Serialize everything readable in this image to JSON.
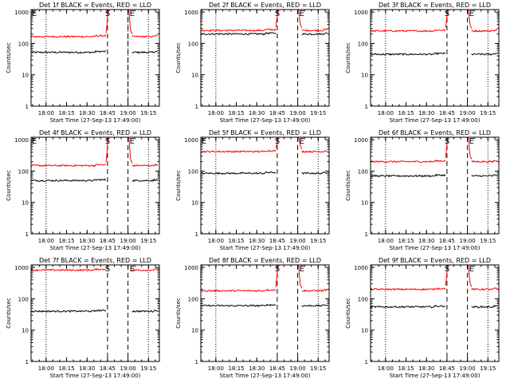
{
  "x_tick_labels": [
    "18:00",
    "18:15",
    "18:30",
    "18:45",
    "19:00",
    "19:15"
  ],
  "y_tick_labels": [
    "1",
    "10",
    "100",
    "1000"
  ],
  "ylabel": "Counts/sec",
  "start_marker": "S",
  "end_marker": "E",
  "colors": {
    "events": "#000000",
    "lld": "#ff0000",
    "background": "#ffffff"
  },
  "chart_data": [
    {
      "type": "line",
      "title": "Det 1f BLACK = Events, RED = LLD",
      "xlabel": "Start Time (27-Sep-13 17:49:00)",
      "ylabel": "Counts/sec",
      "y_scale": "log",
      "ylim": [
        1,
        1200
      ],
      "x_ticks": [
        "18:00",
        "18:15",
        "18:30",
        "18:45",
        "19:00",
        "19:15"
      ],
      "dotted_lines": [
        "18:00",
        "19:00",
        "19:15"
      ],
      "dashed_lines": [
        "18:45",
        "19:00"
      ],
      "series": [
        {
          "name": "Events",
          "color": "#000000",
          "segments": [
            {
              "from": "17:49",
              "to": "18:44",
              "level": 52
            },
            {
              "from": "19:03",
              "to": "19:22",
              "level": 52
            }
          ]
        },
        {
          "name": "LLD",
          "color": "#ff0000",
          "segments": [
            {
              "from": "17:49",
              "to": "18:44",
              "level": 165
            },
            {
              "from": "19:03",
              "to": "19:22",
              "level": 165
            }
          ],
          "peaks": [
            {
              "from": "18:44",
              "to": "18:52",
              "level": 1200
            },
            {
              "from": "18:55",
              "to": "19:03",
              "level": 1200
            }
          ]
        }
      ]
    },
    {
      "type": "line",
      "title": "Det 2f BLACK = Events, RED = LLD",
      "xlabel": "Start Time (27-Sep-13 17:49:00)",
      "ylabel": "Counts/sec",
      "y_scale": "log",
      "ylim": [
        1,
        1200
      ],
      "x_ticks": [
        "18:00",
        "18:15",
        "18:30",
        "18:45",
        "19:00",
        "19:15"
      ],
      "dotted_lines": [
        "18:00",
        "19:15"
      ],
      "dashed_lines": [
        "18:45",
        "19:00"
      ],
      "series": [
        {
          "name": "Events",
          "color": "#000000",
          "segments": [
            {
              "from": "17:49",
              "to": "18:44",
              "level": 200
            },
            {
              "from": "19:03",
              "to": "19:22",
              "level": 200
            }
          ]
        },
        {
          "name": "LLD",
          "color": "#ff0000",
          "segments": [
            {
              "from": "17:49",
              "to": "18:44",
              "level": 260
            },
            {
              "from": "19:03",
              "to": "19:22",
              "level": 260
            }
          ],
          "peaks": [
            {
              "from": "18:44",
              "to": "18:52",
              "level": 1200
            },
            {
              "from": "18:55",
              "to": "19:03",
              "level": 1200
            }
          ]
        }
      ]
    },
    {
      "type": "line",
      "title": "Det 3f BLACK = Events, RED = LLD",
      "xlabel": "Start Time (27-Sep-13 17:49:00)",
      "ylabel": "Counts/sec",
      "y_scale": "log",
      "ylim": [
        1,
        1200
      ],
      "x_ticks": [
        "18:00",
        "18:15",
        "18:30",
        "18:45",
        "19:00",
        "19:15"
      ],
      "dotted_lines": [
        "18:00",
        "19:15"
      ],
      "dashed_lines": [
        "18:45",
        "19:00"
      ],
      "series": [
        {
          "name": "Events",
          "color": "#000000",
          "segments": [
            {
              "from": "17:49",
              "to": "18:44",
              "level": 45
            },
            {
              "from": "19:03",
              "to": "19:22",
              "level": 45
            }
          ]
        },
        {
          "name": "LLD",
          "color": "#ff0000",
          "segments": [
            {
              "from": "17:49",
              "to": "18:44",
              "level": 250
            },
            {
              "from": "19:03",
              "to": "19:22",
              "level": 250
            }
          ],
          "peaks": [
            {
              "from": "18:44",
              "to": "18:52",
              "level": 1200
            },
            {
              "from": "18:55",
              "to": "19:03",
              "level": 1200
            }
          ]
        }
      ]
    },
    {
      "type": "line",
      "title": "Det 4f BLACK = Events, RED = LLD",
      "xlabel": "Start Time (27-Sep-13 17:49:00)",
      "ylabel": "Counts/sec",
      "y_scale": "log",
      "ylim": [
        1,
        1200
      ],
      "x_ticks": [
        "18:00",
        "18:15",
        "18:30",
        "18:45",
        "19:00",
        "19:15"
      ],
      "dotted_lines": [
        "18:00",
        "19:15"
      ],
      "dashed_lines": [
        "18:45",
        "19:00"
      ],
      "series": [
        {
          "name": "Events",
          "color": "#000000",
          "segments": [
            {
              "from": "17:49",
              "to": "18:44",
              "level": 50
            },
            {
              "from": "19:03",
              "to": "19:22",
              "level": 50
            }
          ]
        },
        {
          "name": "LLD",
          "color": "#ff0000",
          "segments": [
            {
              "from": "17:49",
              "to": "18:44",
              "level": 150
            },
            {
              "from": "19:03",
              "to": "19:22",
              "level": 150
            }
          ],
          "peaks": [
            {
              "from": "18:44",
              "to": "18:52",
              "level": 1200
            },
            {
              "from": "18:55",
              "to": "19:03",
              "level": 1200
            }
          ]
        }
      ]
    },
    {
      "type": "line",
      "title": "Det 5f BLACK = Events, RED = LLD",
      "xlabel": "Start Time (27-Sep-13 17:49:00)",
      "ylabel": "Counts/sec",
      "y_scale": "log",
      "ylim": [
        1,
        1200
      ],
      "x_ticks": [
        "18:00",
        "18:15",
        "18:30",
        "18:45",
        "19:00",
        "19:15"
      ],
      "dotted_lines": [
        "18:00",
        "19:15"
      ],
      "dashed_lines": [
        "18:45",
        "19:00"
      ],
      "series": [
        {
          "name": "Events",
          "color": "#000000",
          "segments": [
            {
              "from": "17:49",
              "to": "18:44",
              "level": 85
            },
            {
              "from": "19:03",
              "to": "19:22",
              "level": 85
            }
          ]
        },
        {
          "name": "LLD",
          "color": "#ff0000",
          "segments": [
            {
              "from": "17:49",
              "to": "18:44",
              "level": 420
            },
            {
              "from": "19:03",
              "to": "19:22",
              "level": 420
            }
          ],
          "peaks": [
            {
              "from": "18:44",
              "to": "18:52",
              "level": 1200
            },
            {
              "from": "18:55",
              "to": "19:03",
              "level": 1200
            }
          ]
        }
      ]
    },
    {
      "type": "line",
      "title": "Det 6f BLACK = Events, RED = LLD",
      "xlabel": "Start Time (27-Sep-13 17:49:00)",
      "ylabel": "Counts/sec",
      "y_scale": "log",
      "ylim": [
        1,
        1200
      ],
      "x_ticks": [
        "18:00",
        "18:15",
        "18:30",
        "18:45",
        "19:00",
        "19:15"
      ],
      "dotted_lines": [
        "18:00",
        "19:15"
      ],
      "dashed_lines": [
        "18:45",
        "19:00"
      ],
      "series": [
        {
          "name": "Events",
          "color": "#000000",
          "segments": [
            {
              "from": "17:49",
              "to": "18:44",
              "level": 70
            },
            {
              "from": "19:03",
              "to": "19:22",
              "level": 70
            }
          ]
        },
        {
          "name": "LLD",
          "color": "#ff0000",
          "segments": [
            {
              "from": "17:49",
              "to": "18:44",
              "level": 200
            },
            {
              "from": "19:03",
              "to": "19:22",
              "level": 200
            }
          ],
          "peaks": [
            {
              "from": "18:44",
              "to": "18:52",
              "level": 1200
            },
            {
              "from": "18:55",
              "to": "19:03",
              "level": 1200
            }
          ]
        }
      ]
    },
    {
      "type": "line",
      "title": "Det 7f BLACK = Events, RED = LLD",
      "xlabel": "Start Time (27-Sep-13 17:49:00)",
      "ylabel": "Counts/sec",
      "y_scale": "log",
      "ylim": [
        1,
        1200
      ],
      "x_ticks": [
        "18:00",
        "18:15",
        "18:30",
        "18:45",
        "19:00",
        "19:15"
      ],
      "dotted_lines": [
        "18:00",
        "19:15"
      ],
      "dashed_lines": [
        "18:45",
        "19:00"
      ],
      "series": [
        {
          "name": "Events",
          "color": "#000000",
          "segments": [
            {
              "from": "17:49",
              "to": "18:44",
              "level": 40
            },
            {
              "from": "19:03",
              "to": "19:22",
              "level": 40
            }
          ]
        },
        {
          "name": "LLD",
          "color": "#ff0000",
          "segments": [
            {
              "from": "17:49",
              "to": "18:44",
              "level": 820
            },
            {
              "from": "19:03",
              "to": "19:22",
              "level": 820
            }
          ],
          "peaks": []
        }
      ]
    },
    {
      "type": "line",
      "title": "Det 8f BLACK = Events, RED = LLD",
      "xlabel": "Start Time (27-Sep-13 17:49:00)",
      "ylabel": "Counts/sec",
      "y_scale": "log",
      "ylim": [
        1,
        1200
      ],
      "x_ticks": [
        "18:00",
        "18:15",
        "18:30",
        "18:45",
        "19:00",
        "19:15"
      ],
      "dotted_lines": [
        "18:00",
        "19:15"
      ],
      "dashed_lines": [
        "18:45",
        "19:00"
      ],
      "series": [
        {
          "name": "Events",
          "color": "#000000",
          "segments": [
            {
              "from": "17:49",
              "to": "18:44",
              "level": 60
            },
            {
              "from": "19:03",
              "to": "19:22",
              "level": 60
            }
          ]
        },
        {
          "name": "LLD",
          "color": "#ff0000",
          "segments": [
            {
              "from": "17:49",
              "to": "18:44",
              "level": 180
            },
            {
              "from": "19:03",
              "to": "19:22",
              "level": 180
            }
          ],
          "peaks": [
            {
              "from": "18:44",
              "to": "18:52",
              "level": 1200
            },
            {
              "from": "18:55",
              "to": "19:03",
              "level": 1200
            }
          ]
        }
      ]
    },
    {
      "type": "line",
      "title": "Det 9f BLACK = Events, RED = LLD",
      "xlabel": "Start Time (27-Sep-13 17:49:00)",
      "ylabel": "Counts/sec",
      "y_scale": "log",
      "ylim": [
        1,
        1200
      ],
      "x_ticks": [
        "18:00",
        "18:15",
        "18:30",
        "18:45",
        "19:00",
        "19:15"
      ],
      "dotted_lines": [
        "18:00",
        "19:15"
      ],
      "dashed_lines": [
        "18:45",
        "19:00"
      ],
      "series": [
        {
          "name": "Events",
          "color": "#000000",
          "segments": [
            {
              "from": "17:49",
              "to": "18:44",
              "level": 55
            },
            {
              "from": "19:03",
              "to": "19:22",
              "level": 55
            }
          ]
        },
        {
          "name": "LLD",
          "color": "#ff0000",
          "segments": [
            {
              "from": "17:49",
              "to": "18:44",
              "level": 200
            },
            {
              "from": "19:03",
              "to": "19:22",
              "level": 200
            }
          ],
          "peaks": [
            {
              "from": "18:44",
              "to": "18:52",
              "level": 1200
            },
            {
              "from": "18:55",
              "to": "19:03",
              "level": 1200
            }
          ]
        }
      ]
    }
  ]
}
